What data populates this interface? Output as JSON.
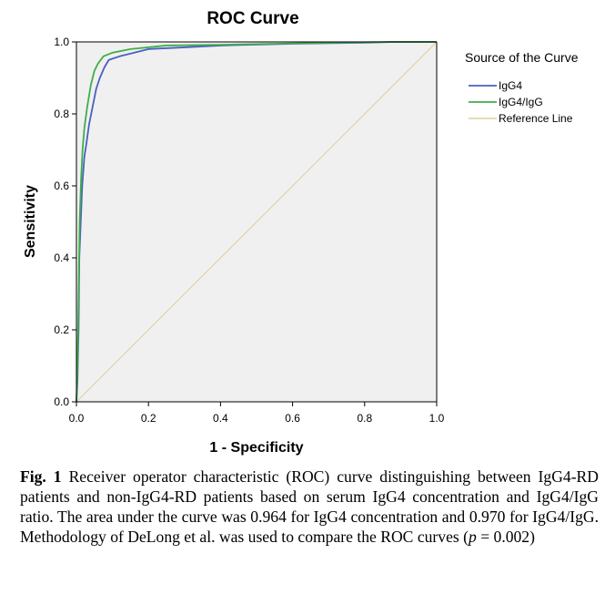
{
  "chart_data": {
    "type": "line",
    "title": "ROC Curve",
    "xlabel": "1 - Specificity",
    "ylabel": "Sensitivity",
    "xlim": [
      0,
      1
    ],
    "ylim": [
      0,
      1
    ],
    "xticks": [
      "0.0",
      "0.2",
      "0.4",
      "0.6",
      "0.8",
      "1.0"
    ],
    "yticks": [
      "0.0",
      "0.2",
      "0.4",
      "0.6",
      "0.8",
      "1.0"
    ],
    "grid": false,
    "legend_position": "right",
    "legend_title": "Source of the Curve",
    "series": [
      {
        "name": "IgG4",
        "color": "#4a5fc1",
        "points": [
          [
            0,
            0
          ],
          [
            0.003,
            0.06
          ],
          [
            0.006,
            0.2
          ],
          [
            0.008,
            0.4
          ],
          [
            0.012,
            0.5
          ],
          [
            0.016,
            0.6
          ],
          [
            0.022,
            0.68
          ],
          [
            0.028,
            0.72
          ],
          [
            0.035,
            0.77
          ],
          [
            0.045,
            0.82
          ],
          [
            0.055,
            0.87
          ],
          [
            0.065,
            0.9
          ],
          [
            0.078,
            0.93
          ],
          [
            0.09,
            0.95
          ],
          [
            0.12,
            0.96
          ],
          [
            0.16,
            0.97
          ],
          [
            0.2,
            0.98
          ],
          [
            0.3,
            0.985
          ],
          [
            0.4,
            0.99
          ],
          [
            0.6,
            0.995
          ],
          [
            0.8,
            0.998
          ],
          [
            0.88,
            1.0
          ],
          [
            1.0,
            1.0
          ]
        ]
      },
      {
        "name": "IgG4/IgG",
        "color": "#3fae49",
        "points": [
          [
            0,
            0
          ],
          [
            0.003,
            0.1
          ],
          [
            0.006,
            0.3
          ],
          [
            0.009,
            0.5
          ],
          [
            0.013,
            0.62
          ],
          [
            0.017,
            0.7
          ],
          [
            0.022,
            0.76
          ],
          [
            0.03,
            0.82
          ],
          [
            0.04,
            0.88
          ],
          [
            0.05,
            0.92
          ],
          [
            0.06,
            0.94
          ],
          [
            0.075,
            0.96
          ],
          [
            0.1,
            0.97
          ],
          [
            0.15,
            0.98
          ],
          [
            0.25,
            0.99
          ],
          [
            0.4,
            0.992
          ],
          [
            0.55,
            0.995
          ],
          [
            0.7,
            0.998
          ],
          [
            0.89,
            1.0
          ],
          [
            1.0,
            1.0
          ]
        ]
      },
      {
        "name": "Reference Line",
        "color": "#e0d8ab",
        "points": [
          [
            0,
            0
          ],
          [
            1,
            1
          ]
        ]
      }
    ]
  },
  "colors": {
    "plot_background": "#f0f0f0",
    "axis": "#000000"
  },
  "caption": {
    "label": "Fig. 1",
    "text_before_p": " Receiver operator characteristic (ROC) curve distinguishing between IgG4-RD patients and non-IgG4-RD patients based on serum IgG4 concentration and IgG4/IgG ratio. The area under the curve was 0.964 for IgG4 concentration and 0.970 for IgG4/IgG. Methodology of DeLong et al. was used to compare the ROC curves (",
    "p_symbol": "p",
    "text_after_p": " = 0.002)"
  }
}
